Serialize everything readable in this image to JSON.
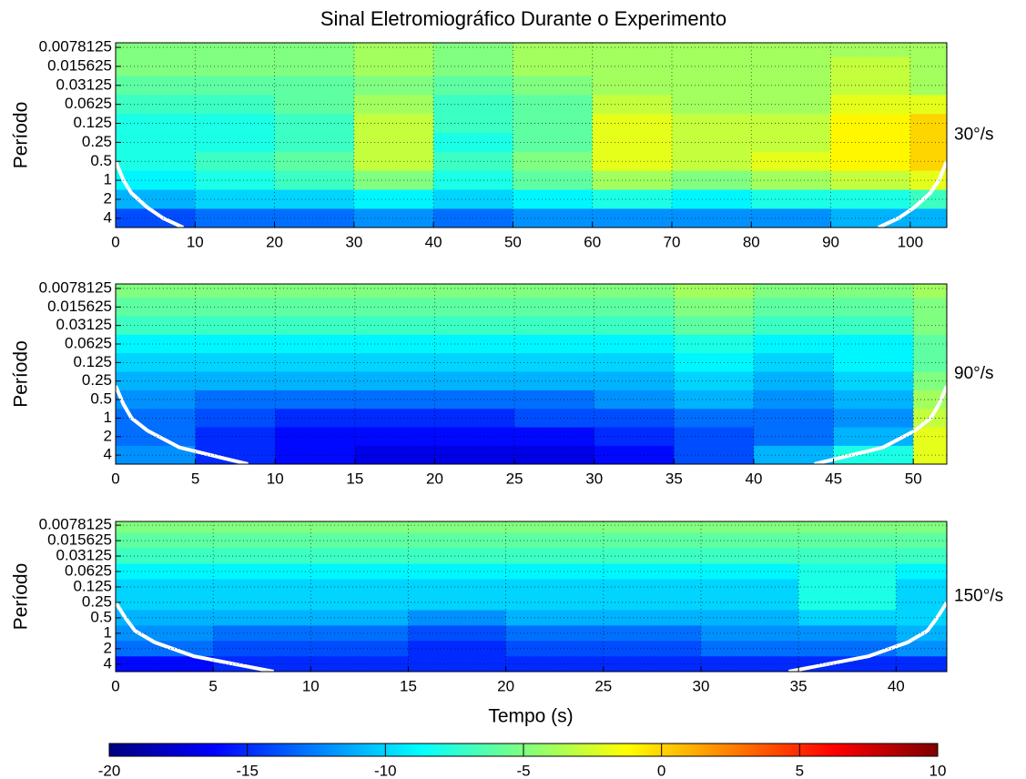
{
  "chart_data": [
    {
      "type": "heatmap",
      "title": "Sinal Eletromiográfico Durante o Experimento",
      "ylabel": "Período",
      "side_label": "30°/s",
      "colormap": "jet",
      "log_y": true,
      "y_inverted": true,
      "grid": true,
      "xbins": [
        0,
        10,
        20,
        30,
        40,
        50,
        60,
        70,
        80,
        90,
        100,
        104.6
      ],
      "y": [
        0.0078125,
        0.015625,
        0.03125,
        0.0625,
        0.125,
        0.25,
        0.5,
        1,
        2,
        4
      ],
      "values": [
        [
          -5,
          -5,
          -5,
          -4,
          -5,
          -4,
          -4,
          -4,
          -4,
          -4,
          -4
        ],
        [
          -5,
          -5,
          -5,
          -4,
          -5,
          -4,
          -4,
          -4,
          -4,
          -3,
          -4
        ],
        [
          -6,
          -6,
          -6,
          -5,
          -6,
          -5,
          -4,
          -4,
          -4,
          -3,
          -4
        ],
        [
          -7,
          -7,
          -6,
          -4,
          -7,
          -6,
          -3,
          -4,
          -4,
          -2,
          -2
        ],
        [
          -8,
          -8,
          -7,
          -3,
          -7,
          -6,
          -2,
          -3,
          -3,
          -1,
          0
        ],
        [
          -8,
          -8,
          -7,
          -3,
          -8,
          -6,
          -2,
          -3,
          -3,
          -1,
          0
        ],
        [
          -8,
          -7,
          -6,
          -3,
          -7,
          -5,
          -2,
          -3,
          -2,
          -1,
          0
        ],
        [
          -9,
          -8,
          -7,
          -5,
          -8,
          -6,
          -4,
          -5,
          -4,
          -3,
          -2
        ],
        [
          -11,
          -10,
          -10,
          -9,
          -10,
          -9,
          -8,
          -9,
          -8,
          -8,
          -7
        ],
        [
          -14,
          -13,
          -13,
          -12,
          -13,
          -12,
          -12,
          -12,
          -12,
          -11,
          -11
        ]
      ],
      "coi": {
        "color": "#ffffff",
        "x": [
          0,
          1,
          2,
          4,
          6,
          8.5,
          null,
          96,
          98.5,
          100.5,
          102.5,
          103.6,
          104.6
        ],
        "y": [
          0.5,
          1,
          1.6,
          2.7,
          4,
          5.6,
          null,
          5.6,
          4,
          2.7,
          1.6,
          1,
          0.5
        ]
      },
      "xlim": [
        0,
        104.6
      ],
      "xticks": [
        0,
        10,
        20,
        30,
        40,
        50,
        60,
        70,
        80,
        90,
        100
      ],
      "ylim": [
        0.0066,
        5.6
      ],
      "yticks": [
        0.0078125,
        0.015625,
        0.03125,
        0.0625,
        0.125,
        0.25,
        0.5,
        1,
        2,
        4
      ]
    },
    {
      "type": "heatmap",
      "ylabel": "Período",
      "side_label": "90°/s",
      "colormap": "jet",
      "log_y": true,
      "y_inverted": true,
      "grid": true,
      "xbins": [
        0,
        5,
        10,
        15,
        20,
        25,
        30,
        35,
        40,
        45,
        50,
        52.1
      ],
      "y": [
        0.0078125,
        0.015625,
        0.03125,
        0.0625,
        0.125,
        0.25,
        0.5,
        1,
        2,
        4
      ],
      "values": [
        [
          -5,
          -5,
          -5,
          -5,
          -5,
          -5,
          -5,
          -4,
          -5,
          -5,
          -4
        ],
        [
          -6,
          -6,
          -6,
          -6,
          -6,
          -6,
          -6,
          -5,
          -6,
          -6,
          -5
        ],
        [
          -7,
          -7,
          -7,
          -7,
          -7,
          -7,
          -7,
          -6,
          -7,
          -7,
          -5
        ],
        [
          -9,
          -9,
          -9,
          -9,
          -9,
          -9,
          -9,
          -8,
          -9,
          -9,
          -6
        ],
        [
          -10,
          -10,
          -10,
          -10,
          -10,
          -10,
          -10,
          -9,
          -10,
          -9,
          -6
        ],
        [
          -11,
          -11,
          -11,
          -11,
          -11,
          -11,
          -11,
          -10,
          -11,
          -10,
          -5
        ],
        [
          -12,
          -13,
          -13,
          -13,
          -13,
          -13,
          -12,
          -11,
          -12,
          -11,
          -4
        ],
        [
          -13,
          -14,
          -15,
          -15,
          -15,
          -14,
          -14,
          -13,
          -13,
          -12,
          -3
        ],
        [
          -13,
          -15,
          -16,
          -16,
          -16,
          -16,
          -15,
          -14,
          -13,
          -11,
          -2
        ],
        [
          -12,
          -15,
          -16,
          -17,
          -17,
          -17,
          -16,
          -14,
          -11,
          -8,
          -2
        ]
      ],
      "coi": {
        "color": "#ffffff",
        "x": [
          0,
          0.5,
          1,
          2,
          4,
          8.3,
          null,
          43.8,
          48.1,
          50.1,
          51.1,
          51.6,
          52.1
        ],
        "y": [
          0.3,
          0.6,
          1,
          1.6,
          3,
          5.6,
          null,
          5.6,
          3,
          1.6,
          1,
          0.6,
          0.3
        ]
      },
      "xlim": [
        0,
        52.1
      ],
      "xticks": [
        0,
        5,
        10,
        15,
        20,
        25,
        30,
        35,
        40,
        45,
        50
      ],
      "ylim": [
        0.0066,
        5.6
      ],
      "yticks": [
        0.0078125,
        0.015625,
        0.03125,
        0.0625,
        0.125,
        0.25,
        0.5,
        1,
        2,
        4
      ]
    },
    {
      "type": "heatmap",
      "ylabel": "Período",
      "xlabel": "Tempo (s)",
      "side_label": "150°/s",
      "colormap": "jet",
      "log_y": true,
      "y_inverted": true,
      "grid": true,
      "xbins": [
        0,
        5,
        10,
        15,
        20,
        25,
        30,
        35,
        40,
        42.6
      ],
      "y": [
        0.0078125,
        0.015625,
        0.03125,
        0.0625,
        0.125,
        0.25,
        0.5,
        1,
        2,
        4
      ],
      "values": [
        [
          -5,
          -5,
          -5,
          -5,
          -5,
          -5,
          -5,
          -5,
          -5
        ],
        [
          -6,
          -6,
          -6,
          -6,
          -6,
          -6,
          -6,
          -6,
          -6
        ],
        [
          -7,
          -7,
          -7,
          -7,
          -7,
          -7,
          -7,
          -7,
          -7
        ],
        [
          -9,
          -9,
          -9,
          -9,
          -9,
          -9,
          -9,
          -8,
          -9
        ],
        [
          -10,
          -10,
          -10,
          -10,
          -10,
          -10,
          -10,
          -8,
          -10
        ],
        [
          -10,
          -10,
          -10,
          -10,
          -10,
          -10,
          -10,
          -8,
          -10
        ],
        [
          -11,
          -11,
          -11,
          -12,
          -11,
          -11,
          -11,
          -10,
          -10
        ],
        [
          -12,
          -13,
          -13,
          -14,
          -13,
          -13,
          -12,
          -12,
          -11
        ],
        [
          -13,
          -14,
          -14,
          -15,
          -14,
          -14,
          -13,
          -13,
          -12
        ],
        [
          -16,
          -15,
          -15,
          -15,
          -15,
          -15,
          -15,
          -15,
          -15
        ]
      ],
      "coi": {
        "color": "#ffffff",
        "x": [
          0,
          0.5,
          1,
          2,
          4,
          8.1,
          null,
          34.5,
          38.6,
          40.6,
          41.6,
          42.1,
          42.6
        ],
        "y": [
          0.25,
          0.5,
          0.9,
          1.5,
          2.8,
          5.6,
          null,
          5.6,
          2.8,
          1.5,
          0.9,
          0.5,
          0.25
        ]
      },
      "xlim": [
        0,
        42.6
      ],
      "xticks": [
        0,
        5,
        10,
        15,
        20,
        25,
        30,
        35,
        40
      ],
      "ylim": [
        0.0066,
        5.6
      ],
      "yticks": [
        0.0078125,
        0.015625,
        0.03125,
        0.0625,
        0.125,
        0.25,
        0.5,
        1,
        2,
        4
      ]
    }
  ],
  "colorbar": {
    "colormap": "jet",
    "zlim": [
      -20,
      10
    ],
    "ticks": [
      -20,
      -15,
      -10,
      -5,
      0,
      5,
      10
    ]
  }
}
